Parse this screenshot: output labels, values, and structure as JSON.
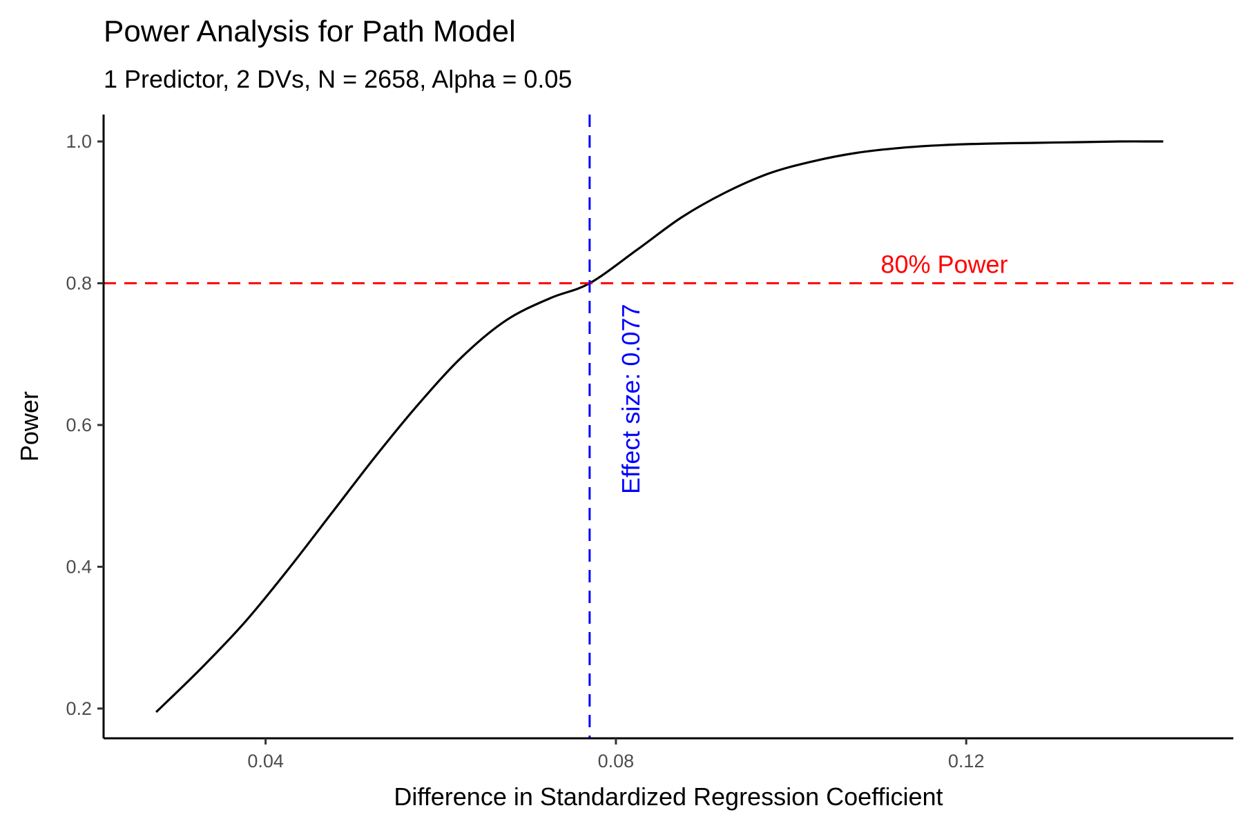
{
  "chart_data": {
    "type": "line",
    "title": "Power Analysis for Path Model",
    "subtitle": "1 Predictor, 2 DVs, N = 2658, Alpha = 0.05",
    "xlabel": "Difference in Standardized Regression Coefficient",
    "ylabel": "Power",
    "xlim": [
      0.0215,
      0.1505
    ],
    "ylim": [
      0.158,
      1.038
    ],
    "x_ticks": [
      {
        "value": 0.04,
        "label": "0.04"
      },
      {
        "value": 0.08,
        "label": "0.08"
      },
      {
        "value": 0.12,
        "label": "0.12"
      }
    ],
    "y_ticks": [
      {
        "value": 0.2,
        "label": "0.2"
      },
      {
        "value": 0.4,
        "label": "0.4"
      },
      {
        "value": 0.6,
        "label": "0.6"
      },
      {
        "value": 0.8,
        "label": "0.8"
      },
      {
        "value": 1.0,
        "label": "1.0"
      }
    ],
    "grid": false,
    "series": [
      {
        "color": "#000000",
        "x": [
          0.0275,
          0.0325,
          0.0375,
          0.0425,
          0.0475,
          0.0525,
          0.0575,
          0.0625,
          0.0675,
          0.0725,
          0.077,
          0.0825,
          0.0875,
          0.0925,
          0.0975,
          0.1025,
          0.1075,
          0.1125,
          0.1175,
          0.1225,
          0.1275,
          0.1325,
          0.1375,
          0.1425
        ],
        "y": [
          0.195,
          0.255,
          0.32,
          0.395,
          0.475,
          0.555,
          0.63,
          0.697,
          0.748,
          0.779,
          0.8,
          0.848,
          0.893,
          0.928,
          0.955,
          0.972,
          0.984,
          0.991,
          0.995,
          0.997,
          0.998,
          0.999,
          1.0,
          1.0
        ]
      }
    ],
    "hline": {
      "y": 0.8,
      "color": "#ff0000",
      "label": "80% Power",
      "label_x": 0.1175
    },
    "vline": {
      "x": 0.077,
      "color": "#0000ff",
      "label": "Effect size: 0.077"
    }
  }
}
